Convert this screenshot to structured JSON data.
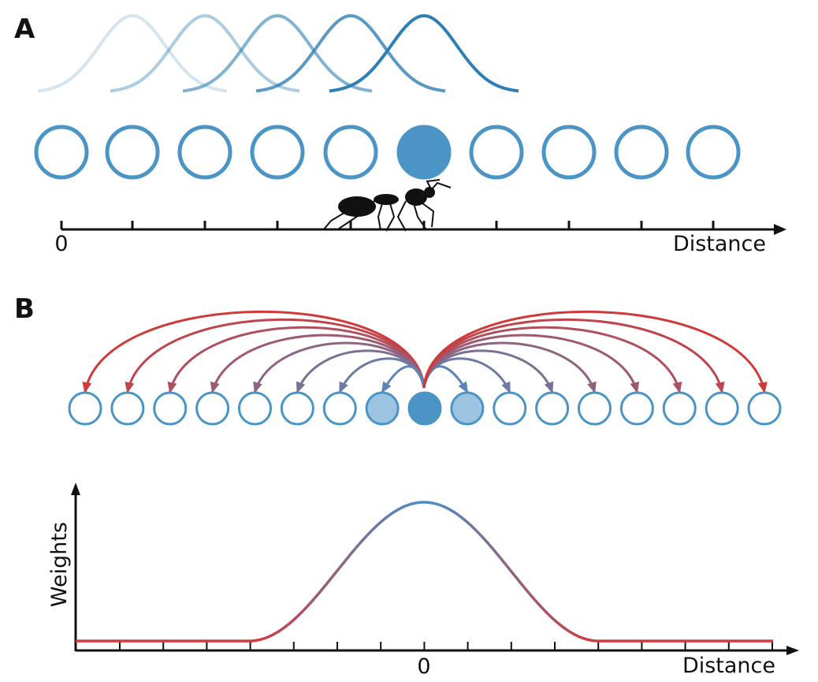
{
  "panel_a": {
    "label": "A",
    "axis_origin": "0",
    "axis_label": "Distance"
  },
  "panel_b": {
    "label": "B",
    "y_axis_label": "Weights",
    "axis_origin": "0",
    "axis_label": "Distance"
  }
}
